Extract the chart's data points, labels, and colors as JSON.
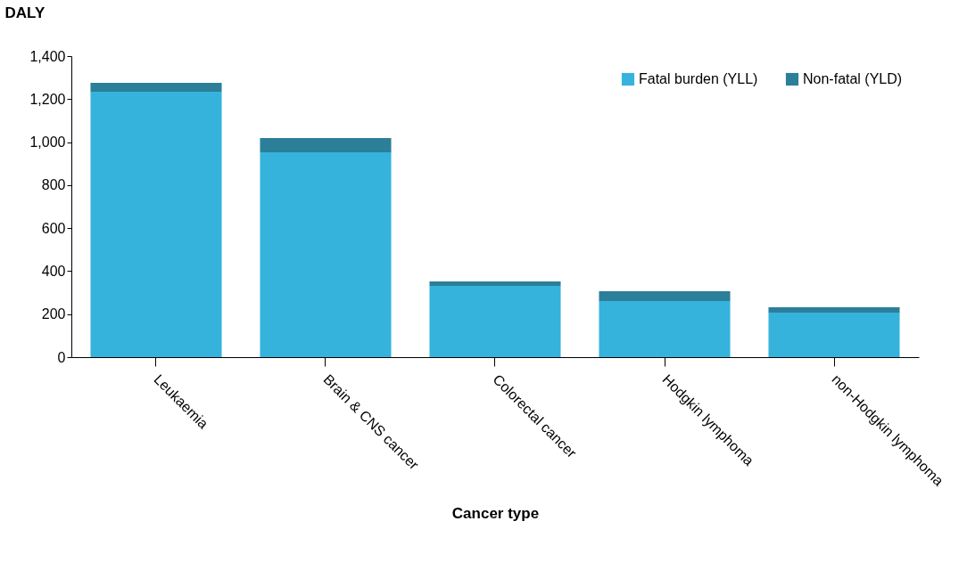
{
  "chart_data": {
    "type": "bar",
    "stacked": true,
    "xlabel": "Cancer type",
    "ylabel": "DALY",
    "categories": [
      "Leukaemia",
      "Brain & CNS cancer",
      "Colorectal cancer",
      "Hodgkin lymphoma",
      "non-Hodgkin lymphoma"
    ],
    "series": [
      {
        "name": "Fatal burden (YLL)",
        "color": "#35b3dc",
        "values": [
          1234,
          953,
          331,
          261,
          207
        ]
      },
      {
        "name": "Non-fatal (YLD)",
        "color": "#2b7f99",
        "values": [
          42,
          66,
          21,
          45,
          25
        ]
      }
    ],
    "ylim": [
      0,
      1400
    ],
    "yticks": [
      0,
      200,
      400,
      600,
      800,
      {
        "value": 1000,
        "label": "1,000"
      },
      {
        "value": 1200,
        "label": "1,200"
      },
      {
        "value": 1400,
        "label": "1,400"
      }
    ],
    "grid": false,
    "legend": "top right"
  }
}
